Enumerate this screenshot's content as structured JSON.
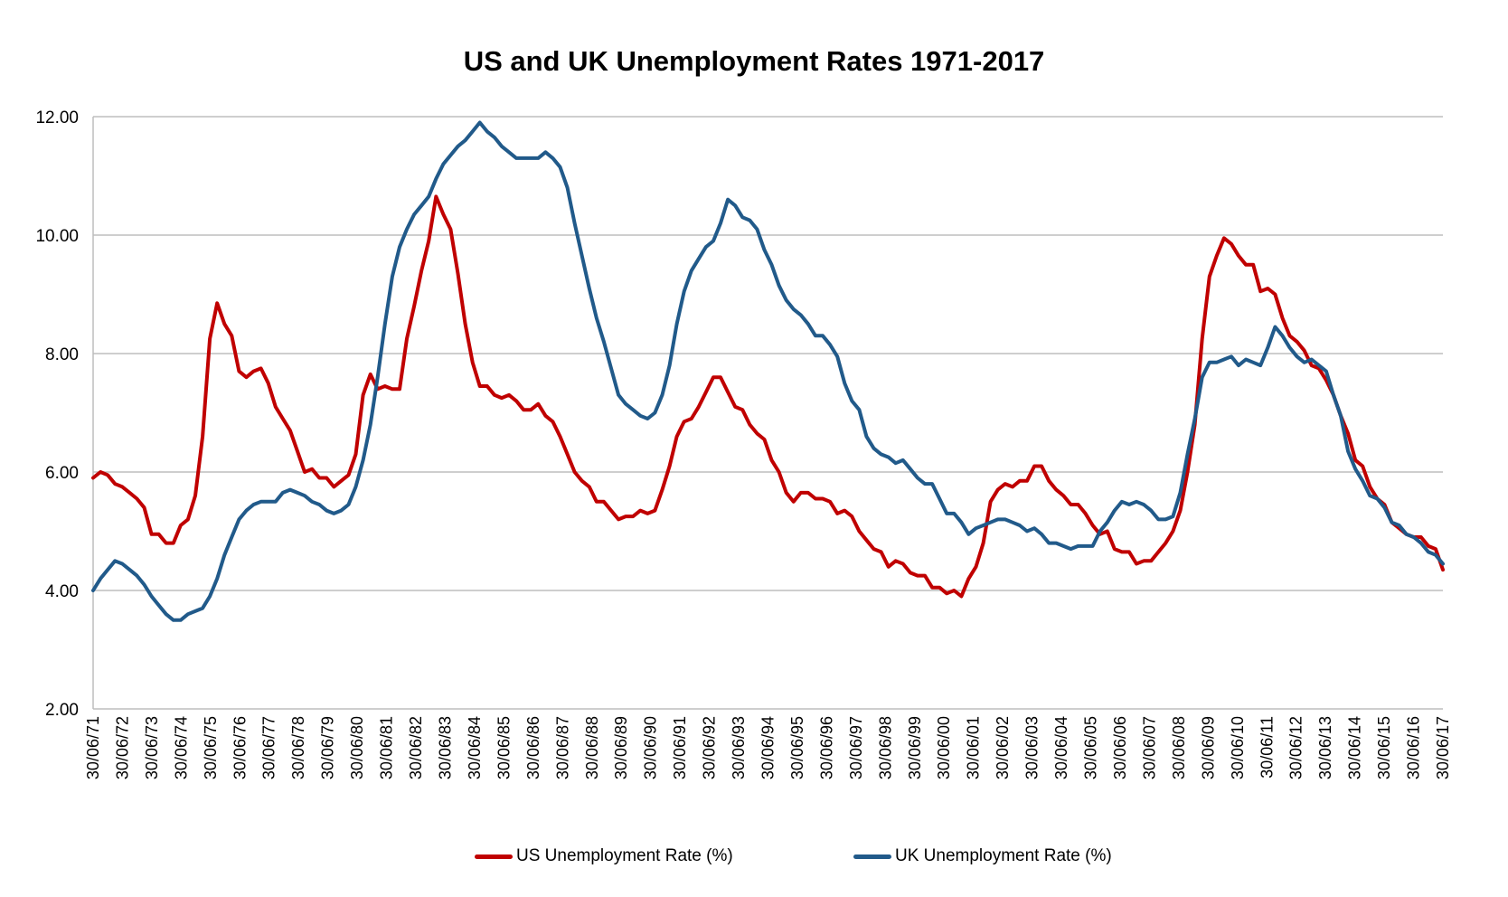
{
  "chart_data": {
    "type": "line",
    "title": "US and UK Unemployment Rates 1971-2017",
    "xlabel": "",
    "ylabel": "",
    "ylim": [
      2,
      12
    ],
    "yticks": [
      "2.00",
      "4.00",
      "6.00",
      "8.00",
      "10.00",
      "12.00"
    ],
    "grid": true,
    "legend_position": "bottom",
    "x_tick_labels": [
      "30/06/71",
      "30/06/72",
      "30/06/73",
      "30/06/74",
      "30/06/75",
      "30/06/76",
      "30/06/77",
      "30/06/78",
      "30/06/79",
      "30/06/80",
      "30/06/81",
      "30/06/82",
      "30/06/83",
      "30/06/84",
      "30/06/85",
      "30/06/86",
      "30/06/87",
      "30/06/88",
      "30/06/89",
      "30/06/90",
      "30/06/91",
      "30/06/92",
      "30/06/93",
      "30/06/94",
      "30/06/95",
      "30/06/96",
      "30/06/97",
      "30/06/98",
      "30/06/99",
      "30/06/00",
      "30/06/01",
      "30/06/02",
      "30/06/03",
      "30/06/04",
      "30/06/05",
      "30/06/06",
      "30/06/07",
      "30/06/08",
      "30/06/09",
      "30/06/10",
      "30/06/11",
      "30/06/12",
      "30/06/13",
      "30/06/14",
      "30/06/15",
      "30/06/16",
      "30/06/17"
    ],
    "x_frequency": "quarterly",
    "series": [
      {
        "name": "US Unemployment Rate (%)",
        "color": "#c00000",
        "values": [
          5.9,
          6.0,
          5.95,
          5.8,
          5.75,
          5.65,
          5.55,
          5.4,
          4.95,
          4.95,
          4.8,
          4.8,
          5.1,
          5.2,
          5.6,
          6.6,
          8.25,
          8.85,
          8.5,
          8.3,
          7.7,
          7.6,
          7.7,
          7.75,
          7.5,
          7.1,
          6.9,
          6.7,
          6.35,
          6.0,
          6.05,
          5.9,
          5.9,
          5.75,
          5.85,
          5.95,
          6.3,
          7.3,
          7.65,
          7.4,
          7.45,
          7.4,
          7.4,
          8.25,
          8.8,
          9.4,
          9.9,
          10.65,
          10.35,
          10.1,
          9.35,
          8.5,
          7.85,
          7.45,
          7.45,
          7.3,
          7.25,
          7.3,
          7.2,
          7.05,
          7.05,
          7.15,
          6.95,
          6.85,
          6.6,
          6.3,
          6.0,
          5.85,
          5.75,
          5.5,
          5.5,
          5.35,
          5.2,
          5.25,
          5.25,
          5.35,
          5.3,
          5.35,
          5.7,
          6.1,
          6.6,
          6.85,
          6.9,
          7.1,
          7.35,
          7.6,
          7.6,
          7.35,
          7.1,
          7.05,
          6.8,
          6.65,
          6.55,
          6.2,
          6.0,
          5.65,
          5.5,
          5.65,
          5.65,
          5.55,
          5.55,
          5.5,
          5.3,
          5.35,
          5.25,
          5.0,
          4.85,
          4.7,
          4.65,
          4.4,
          4.5,
          4.45,
          4.3,
          4.25,
          4.25,
          4.05,
          4.05,
          3.95,
          4.0,
          3.9,
          4.2,
          4.4,
          4.8,
          5.5,
          5.7,
          5.8,
          5.75,
          5.85,
          5.85,
          6.1,
          6.1,
          5.85,
          5.7,
          5.6,
          5.45,
          5.45,
          5.3,
          5.1,
          4.95,
          5.0,
          4.7,
          4.65,
          4.65,
          4.45,
          4.5,
          4.5,
          4.65,
          4.8,
          5.0,
          5.35,
          6.0,
          6.8,
          8.25,
          9.3,
          9.65,
          9.95,
          9.85,
          9.65,
          9.5,
          9.5,
          9.05,
          9.1,
          9.0,
          8.6,
          8.3,
          8.2,
          8.05,
          7.8,
          7.75,
          7.55,
          7.3,
          6.95,
          6.65,
          6.2,
          6.1,
          5.75,
          5.55,
          5.45,
          5.15,
          5.05,
          4.95,
          4.9,
          4.9,
          4.75,
          4.7,
          4.35
        ]
      },
      {
        "name": "UK Unemployment Rate (%)",
        "color": "#215a8a",
        "values": [
          4.0,
          4.2,
          4.35,
          4.5,
          4.45,
          4.35,
          4.25,
          4.1,
          3.9,
          3.75,
          3.6,
          3.5,
          3.5,
          3.6,
          3.65,
          3.7,
          3.9,
          4.2,
          4.6,
          4.9,
          5.2,
          5.35,
          5.45,
          5.5,
          5.5,
          5.5,
          5.65,
          5.7,
          5.65,
          5.6,
          5.5,
          5.45,
          5.35,
          5.3,
          5.35,
          5.45,
          5.75,
          6.2,
          6.8,
          7.6,
          8.5,
          9.3,
          9.8,
          10.1,
          10.35,
          10.5,
          10.65,
          10.95,
          11.2,
          11.35,
          11.5,
          11.6,
          11.75,
          11.9,
          11.75,
          11.65,
          11.5,
          11.4,
          11.3,
          11.3,
          11.3,
          11.3,
          11.4,
          11.3,
          11.15,
          10.8,
          10.2,
          9.65,
          9.1,
          8.6,
          8.2,
          7.75,
          7.3,
          7.15,
          7.05,
          6.95,
          6.9,
          7.0,
          7.3,
          7.8,
          8.5,
          9.05,
          9.4,
          9.6,
          9.8,
          9.9,
          10.2,
          10.6,
          10.5,
          10.3,
          10.25,
          10.1,
          9.75,
          9.5,
          9.15,
          8.9,
          8.75,
          8.65,
          8.5,
          8.3,
          8.3,
          8.15,
          7.95,
          7.5,
          7.2,
          7.05,
          6.6,
          6.4,
          6.3,
          6.25,
          6.15,
          6.2,
          6.05,
          5.9,
          5.8,
          5.8,
          5.55,
          5.3,
          5.3,
          5.15,
          4.95,
          5.05,
          5.1,
          5.15,
          5.2,
          5.2,
          5.15,
          5.1,
          5.0,
          5.05,
          4.95,
          4.8,
          4.8,
          4.75,
          4.7,
          4.75,
          4.75,
          4.75,
          5.0,
          5.15,
          5.35,
          5.5,
          5.45,
          5.5,
          5.45,
          5.35,
          5.2,
          5.2,
          5.25,
          5.65,
          6.3,
          6.9,
          7.6,
          7.85,
          7.85,
          7.9,
          7.95,
          7.8,
          7.9,
          7.85,
          7.8,
          8.1,
          8.45,
          8.3,
          8.1,
          7.95,
          7.85,
          7.9,
          7.8,
          7.7,
          7.3,
          6.95,
          6.35,
          6.05,
          5.85,
          5.6,
          5.55,
          5.4,
          5.15,
          5.1,
          4.95,
          4.9,
          4.8,
          4.65,
          4.6,
          4.45
        ]
      }
    ]
  }
}
